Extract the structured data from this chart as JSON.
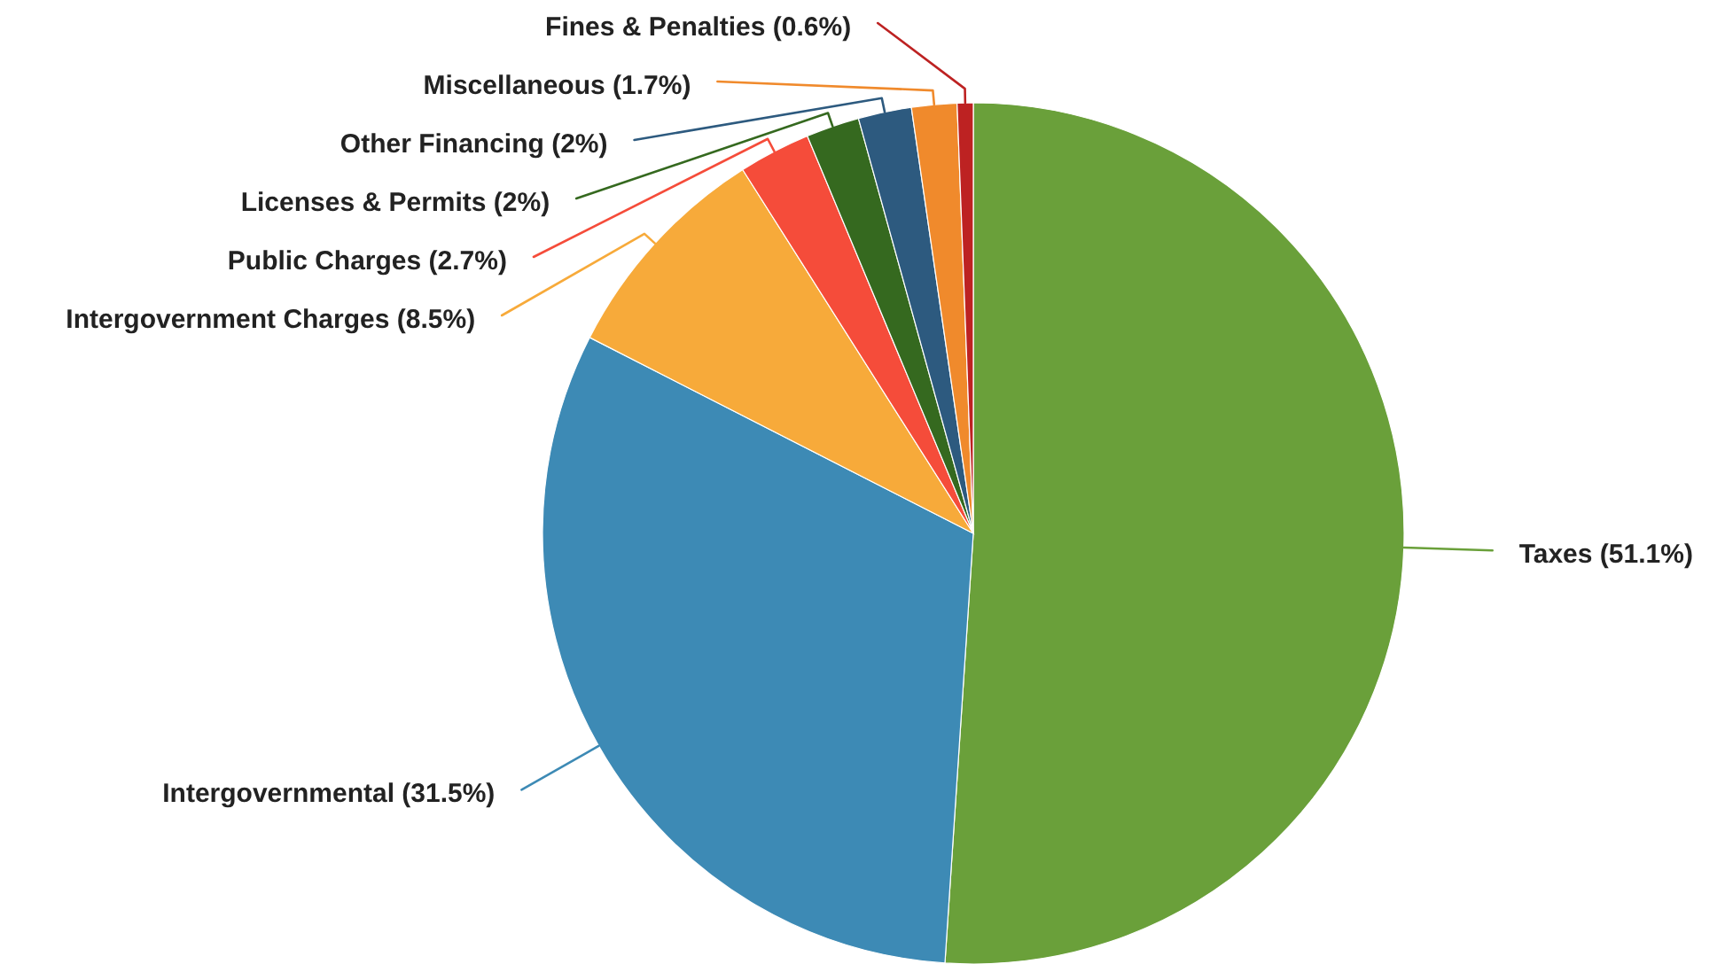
{
  "chart_data": {
    "type": "pie",
    "categories": [
      "Taxes",
      "Intergovernmental",
      "Intergovernment Charges",
      "Public Charges",
      "Licenses & Permits",
      "Other Financing",
      "Miscellaneous",
      "Fines & Penalties"
    ],
    "values": [
      51.1,
      31.5,
      8.5,
      2.7,
      2,
      2,
      1.7,
      0.6
    ],
    "value_labels": [
      "(51.1%)",
      "(31.5%)",
      "(8.5%)",
      "(2.7%)",
      "(2%)",
      "(2%)",
      "(1.7%)",
      "(0.6%)"
    ],
    "colors": [
      "#6aa03a",
      "#3d8ab5",
      "#f7aa3a",
      "#f54c3a",
      "#35691f",
      "#2d5a7f",
      "#f08a2c",
      "#bd2222"
    ]
  }
}
